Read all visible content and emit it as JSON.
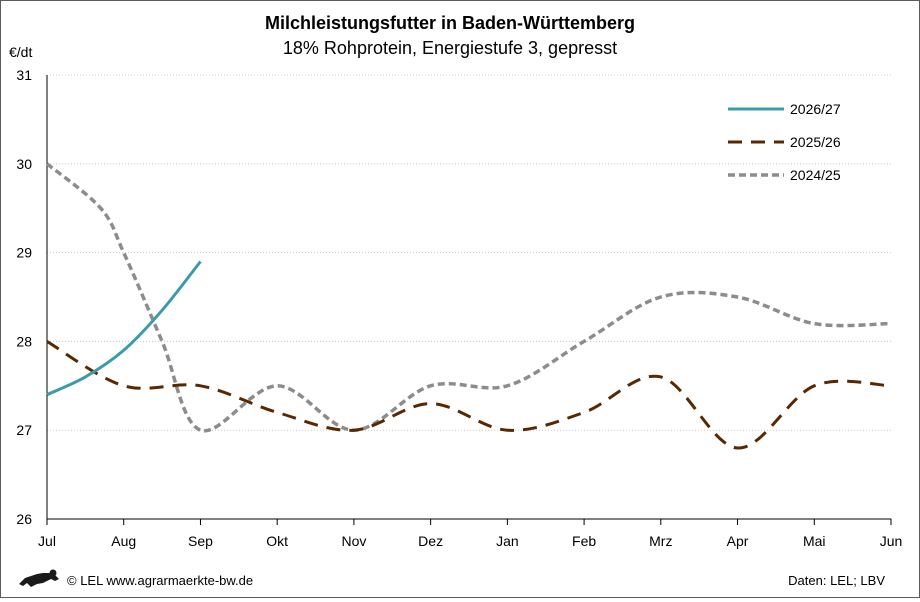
{
  "chart_data": {
    "type": "line",
    "title": "Milchleistungsfutter in Baden-Württemberg",
    "subtitle": "18% Rohprotein, Energiestufe 3, gepresst",
    "ylabel": "€/dt",
    "ylim": [
      26,
      31
    ],
    "yticks": [
      26,
      27,
      28,
      29,
      30,
      31
    ],
    "categories": [
      "Jul",
      "Aug",
      "Sep",
      "Okt",
      "Nov",
      "Dez",
      "Jan",
      "Feb",
      "Mrz",
      "Apr",
      "Mai",
      "Jun"
    ],
    "grid": "horizontal dotted",
    "legend_position": "top-right",
    "series": [
      {
        "name": "2026/27",
        "color": "#3a9bad",
        "style": "solid",
        "points": [
          [
            0,
            27.4
          ],
          [
            0.5,
            27.6
          ],
          [
            1,
            27.9
          ],
          [
            1.5,
            28.35
          ],
          [
            2,
            28.9
          ]
        ]
      },
      {
        "name": "2025/26",
        "color": "#5a2800",
        "style": "dashed",
        "points": [
          [
            0,
            28.0
          ],
          [
            1,
            27.5
          ],
          [
            2,
            27.5
          ],
          [
            3,
            27.2
          ],
          [
            4,
            27.0
          ],
          [
            5,
            27.3
          ],
          [
            6,
            27.0
          ],
          [
            7,
            27.2
          ],
          [
            8,
            27.6
          ],
          [
            9,
            26.8
          ],
          [
            10,
            27.5
          ],
          [
            11,
            27.5
          ]
        ]
      },
      {
        "name": "2024/25",
        "color": "#8c8c8c",
        "style": "dotted",
        "points": [
          [
            0,
            30.0
          ],
          [
            0.7,
            29.5
          ],
          [
            1,
            29.0
          ],
          [
            1.5,
            28.0
          ],
          [
            2,
            27.0
          ],
          [
            3,
            27.5
          ],
          [
            4,
            27.0
          ],
          [
            5,
            27.5
          ],
          [
            6,
            27.5
          ],
          [
            7,
            28.0
          ],
          [
            8,
            28.5
          ],
          [
            9,
            28.5
          ],
          [
            10,
            28.2
          ],
          [
            11,
            28.2
          ]
        ]
      }
    ]
  },
  "footer": {
    "copyright": "© LEL www.agrarmaerkte-bw.de",
    "source": "Daten: LEL; LBV",
    "logo_icon": "lion-logo-icon"
  }
}
